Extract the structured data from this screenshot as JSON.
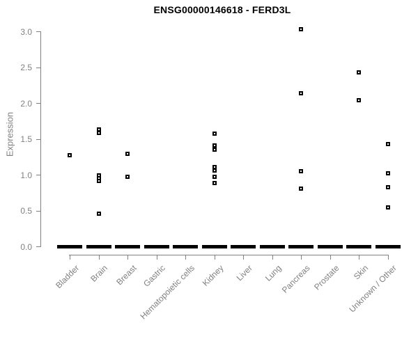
{
  "title": "ENSG00000146618 - FERD3L",
  "chart_data": {
    "type": "scatter",
    "subtype": "strip-plot",
    "title": "ENSG00000146618 - FERD3L",
    "xlabel": "",
    "ylabel": "Expression",
    "ylim": [
      0.0,
      3.0
    ],
    "yticks": [
      "0.0",
      "0.5",
      "1.0",
      "1.5",
      "2.0",
      "2.5",
      "3.0"
    ],
    "grid": false,
    "legend": false,
    "point_marker": "open-square",
    "categories": [
      "Bladder",
      "Brain",
      "Breast",
      "Gastric",
      "Hematopoietic cells",
      "Kidney",
      "Liver",
      "Lung",
      "Pancreas",
      "Prostate",
      "Skin",
      "Unknown / Other"
    ],
    "series": [
      {
        "category": "Bladder",
        "points": [
          1.27
        ],
        "zero_cluster": true
      },
      {
        "category": "Brain",
        "points": [
          1.63,
          1.58,
          0.99,
          0.95,
          0.91,
          0.46
        ],
        "zero_cluster": true
      },
      {
        "category": "Breast",
        "points": [
          1.29,
          0.97
        ],
        "zero_cluster": true
      },
      {
        "category": "Gastric",
        "points": [],
        "zero_cluster": true
      },
      {
        "category": "Hematopoietic cells",
        "points": [],
        "zero_cluster": true
      },
      {
        "category": "Kidney",
        "points": [
          1.57,
          1.41,
          1.35,
          1.11,
          1.06,
          0.97,
          0.88
        ],
        "zero_cluster": true
      },
      {
        "category": "Liver",
        "points": [],
        "zero_cluster": true
      },
      {
        "category": "Lung",
        "points": [],
        "zero_cluster": true
      },
      {
        "category": "Pancreas",
        "points": [
          3.03,
          2.14,
          1.05,
          0.81
        ],
        "zero_cluster": true
      },
      {
        "category": "Prostate",
        "points": [],
        "zero_cluster": true
      },
      {
        "category": "Skin",
        "points": [
          2.43,
          2.04
        ],
        "zero_cluster": true
      },
      {
        "category": "Unknown / Other",
        "points": [
          1.43,
          1.02,
          0.83,
          0.54
        ],
        "zero_cluster": true
      }
    ],
    "colors": {
      "point": "#000000",
      "zero_bar": "#000000",
      "axis": "#808080",
      "tick_text": "#808080",
      "title_text": "#000000",
      "background": "#ffffff"
    }
  }
}
